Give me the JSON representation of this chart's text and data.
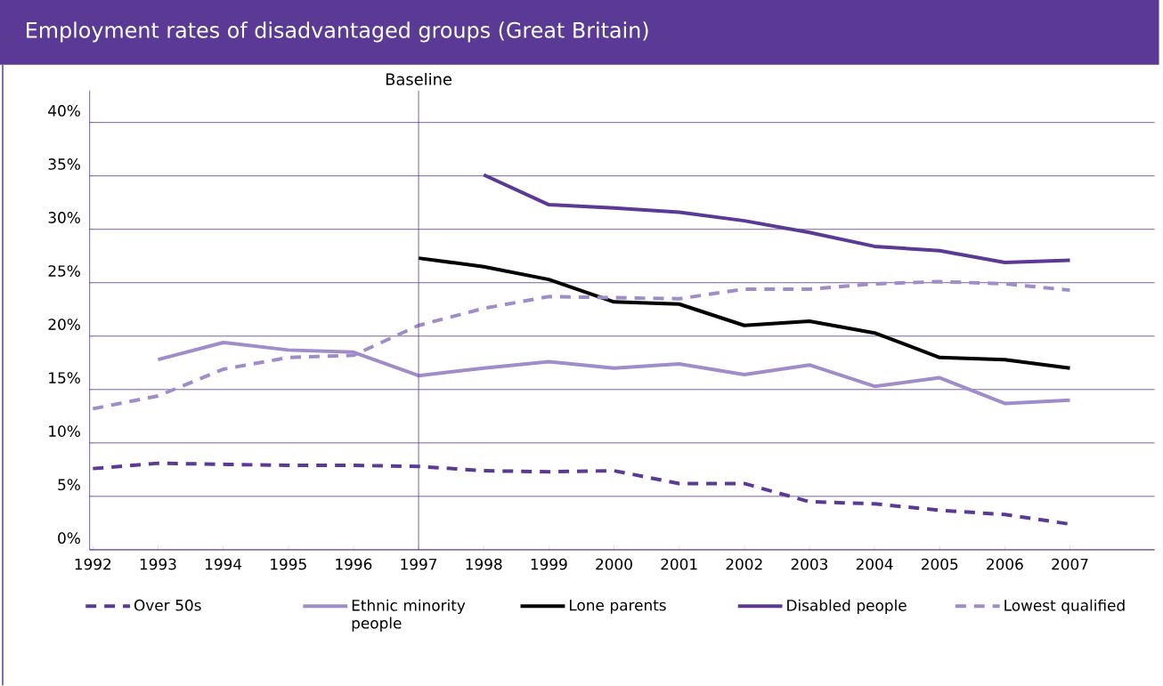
{
  "chart_data": {
    "type": "line",
    "title": "Employment rates of disadvantaged groups (Great Britain)",
    "x": [
      1992,
      1993,
      1994,
      1995,
      1996,
      1997,
      1998,
      1999,
      2000,
      2001,
      2002,
      2003,
      2004,
      2005,
      2006,
      2007
    ],
    "series": [
      {
        "name": "Over 50s",
        "color": "#5b3a96",
        "line_style": "dashed",
        "values": [
          7.6,
          8.1,
          8.0,
          7.9,
          7.9,
          7.8,
          7.4,
          7.3,
          7.4,
          6.2,
          6.2,
          4.5,
          4.3,
          3.7,
          3.3,
          2.4
        ]
      },
      {
        "name": "Ethnic minority people",
        "color": "#a08cc8",
        "line_style": "solid",
        "values": [
          null,
          17.8,
          19.4,
          18.7,
          18.5,
          16.3,
          17.0,
          17.6,
          17.0,
          17.4,
          16.4,
          17.3,
          15.3,
          16.1,
          13.7,
          14.0
        ]
      },
      {
        "name": "Lone parents",
        "color": "#000000",
        "line_style": "solid",
        "values": [
          null,
          null,
          null,
          null,
          null,
          27.3,
          26.5,
          25.3,
          23.2,
          23.0,
          21.0,
          21.4,
          20.3,
          18.0,
          17.8,
          17.0
        ]
      },
      {
        "name": "Disabled people",
        "color": "#5b3a96",
        "line_style": "solid",
        "values": [
          null,
          null,
          null,
          null,
          null,
          null,
          35.1,
          32.3,
          32.0,
          31.6,
          30.8,
          29.7,
          28.4,
          28.0,
          26.9,
          27.1
        ]
      },
      {
        "name": "Lowest qualified",
        "color": "#a08cc8",
        "line_style": "dashed",
        "values": [
          13.2,
          14.4,
          16.9,
          18.0,
          18.2,
          21.0,
          22.6,
          23.7,
          23.6,
          23.5,
          24.4,
          24.4,
          24.9,
          25.1,
          24.9,
          24.3
        ]
      }
    ],
    "xlim": [
      1991.95,
      2008.3
    ],
    "xticks": [
      1992,
      1993,
      1994,
      1995,
      1996,
      1997,
      1998,
      1999,
      2000,
      2001,
      2002,
      2003,
      2004,
      2005,
      2006,
      2007
    ],
    "ylim": [
      0,
      43
    ],
    "yticks": [
      {
        "value": 0,
        "label": "0%"
      },
      {
        "value": 5,
        "label": "5%"
      },
      {
        "value": 10,
        "label": "10%"
      },
      {
        "value": 15,
        "label": "15%"
      },
      {
        "value": 20,
        "label": "20%"
      },
      {
        "value": 25,
        "label": "25%"
      },
      {
        "value": 30,
        "label": "30%"
      },
      {
        "value": 35,
        "label": "35%"
      },
      {
        "value": 40,
        "label": "40%"
      }
    ],
    "ref_lines": [
      {
        "axis": "x",
        "value": 1997,
        "label": "Baseline",
        "color": "#5b3a96"
      }
    ],
    "grid": "y",
    "legend": "bottom",
    "marker": "none"
  }
}
